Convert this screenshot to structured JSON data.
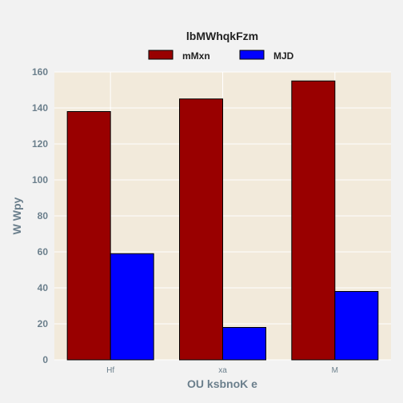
{
  "chart_data": {
    "type": "bar",
    "title": "",
    "xlabel": "OU ksbnoK e",
    "ylabel": "W Wpy",
    "categories": [
      "Hf",
      "xa",
      "M"
    ],
    "series": [
      {
        "name": "mMxn",
        "values": [
          138,
          145,
          155
        ],
        "color": "#990000"
      },
      {
        "name": "MJD",
        "values": [
          59,
          18,
          38
        ],
        "color": "#0000ff"
      }
    ],
    "ylim": [
      0,
      160
    ],
    "yticks": [
      0,
      20,
      40,
      60,
      80,
      100,
      120,
      140,
      160
    ],
    "grid": true,
    "legend": {
      "title": "lbMWhqkFzm",
      "placement": "top-center"
    },
    "colors": {
      "plot_background": "#f2eadb",
      "figure_background": "#f2f2f2",
      "grid": "#ffffff",
      "tick_text": "#6b7f8c"
    }
  }
}
